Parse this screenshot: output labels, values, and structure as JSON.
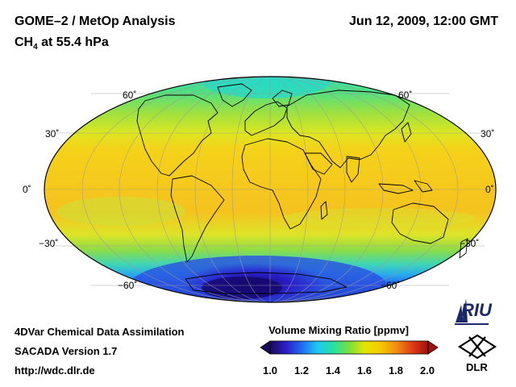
{
  "header": {
    "title": "GOME–2 / MetOp Analysis",
    "species": "CH",
    "species_sub": "4",
    "level": " at 55.4 hPa",
    "datetime": "Jun 12, 2009, 12:00 GMT"
  },
  "map": {
    "projection": "Mollweide",
    "lat_labels": {
      "n60": "60˚",
      "n30": "30˚",
      "eq": "0˚",
      "s30": "−30˚",
      "s60": "−60˚"
    },
    "field": "CH4 volume mixing ratio"
  },
  "footer": {
    "line1": "4DVar Chemical Data Assimilation",
    "line2": "SACADA Version 1.7",
    "line3": "http://wdc.dlr.de"
  },
  "colorbar": {
    "title": "Volume Mixing Ratio [ppmv]",
    "ticks": [
      "1.0",
      "1.2",
      "1.4",
      "1.6",
      "1.8",
      "2.0"
    ],
    "min": 1.0,
    "max": 2.0,
    "colors": [
      "#1a0a5a",
      "#2d1cc8",
      "#1e6ef0",
      "#1ec8f0",
      "#28e0a0",
      "#7ae03c",
      "#e6e600",
      "#f5c800",
      "#f08c14",
      "#e03c14",
      "#a01010"
    ]
  },
  "logos": {
    "riu": "RIU",
    "dlr": "DLR"
  }
}
